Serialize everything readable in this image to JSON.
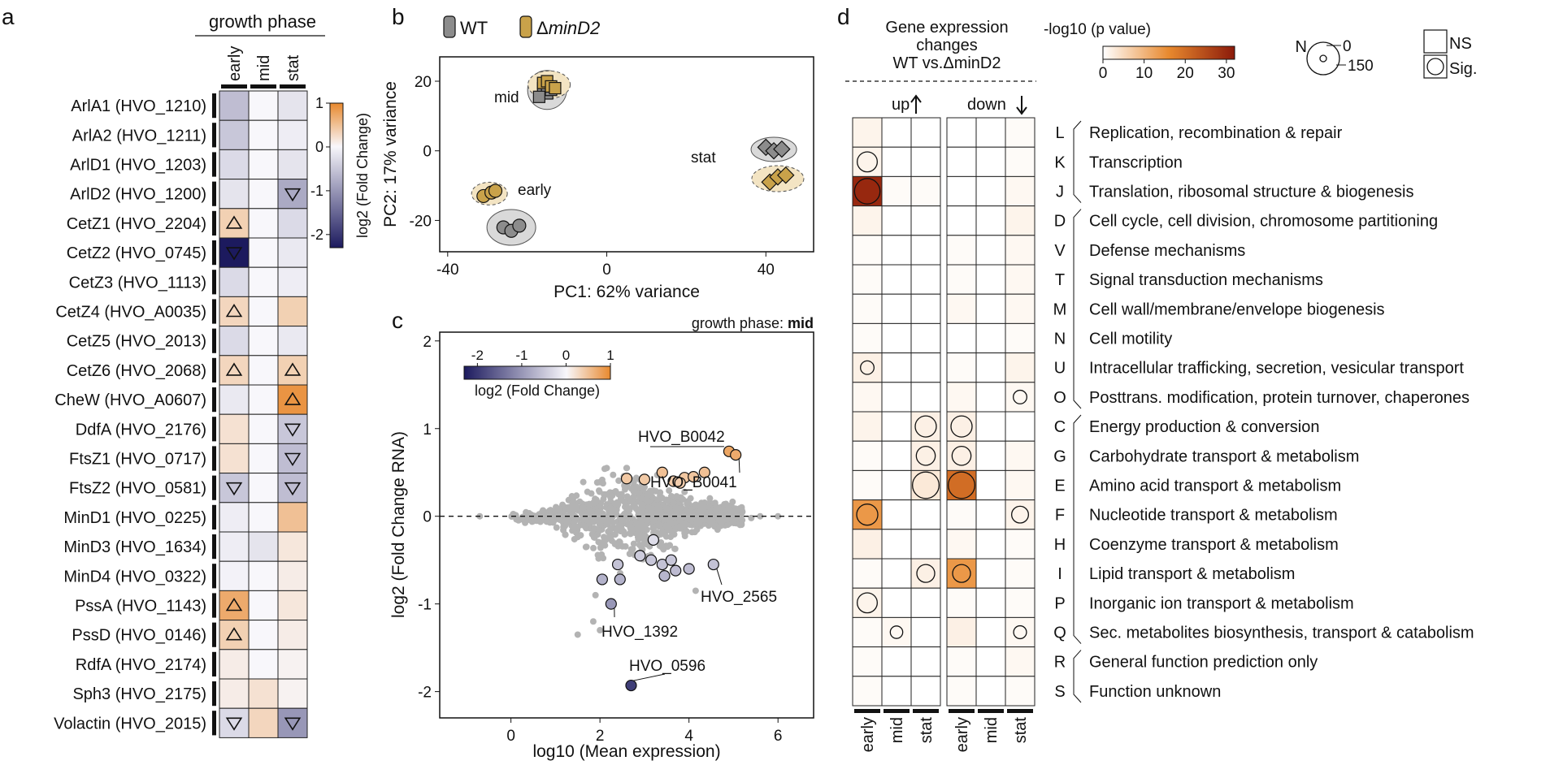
{
  "colors": {
    "negative": "#1c1a5e",
    "positive": "#e8892e",
    "neutral_point": "#b3b3b3",
    "wt": "#8c8c8c",
    "mutant": "#c9a24a",
    "pval_low": "#ffffff",
    "pval_high": "#8b1a0a",
    "cell_border": "#222222"
  },
  "panel_a": {
    "label": "a",
    "header": "growth phase",
    "phases": [
      "early",
      "mid",
      "stat"
    ],
    "colorbar": {
      "label": "log2 (Fold Change)",
      "ticks": [
        "1",
        "0",
        "-1",
        "-2"
      ],
      "range": [
        -2.3,
        1
      ]
    },
    "genes": [
      "ArlA1 (HVO_1210)",
      "ArlA2 (HVO_1211)",
      "ArlD1 (HVO_1203)",
      "ArlD2 (HVO_1200)",
      "CetZ1 (HVO_2204)",
      "CetZ2 (HVO_0745)",
      "CetZ3 (HVO_1113)",
      "CetZ4 (HVO_A0035)",
      "CetZ5 (HVO_2013)",
      "CetZ6 (HVO_2068)",
      "CheW (HVO_A0607)",
      "DdfA (HVO_2176)",
      "FtsZ1 (HVO_0717)",
      "FtsZ2 (HVO_0581)",
      "MinD1 (HVO_0225)",
      "MinD3 (HVO_1634)",
      "MinD4 (HVO_0322)",
      "PssA (HVO_1143)",
      "PssD (HVO_0146)",
      "RdfA (HVO_2174)",
      "Sph3 (HVO_2175)",
      "Volactin (HVO_2015)"
    ],
    "values": [
      [
        -0.6,
        0,
        -0.2
      ],
      [
        -0.5,
        0,
        -0.1
      ],
      [
        -0.3,
        0,
        -0.2
      ],
      [
        -0.2,
        0,
        -0.8
      ],
      [
        0.35,
        0,
        -0.3
      ],
      [
        -2.3,
        0,
        -0.15
      ],
      [
        -0.3,
        0,
        -0.1
      ],
      [
        0.3,
        0,
        0.35
      ],
      [
        -0.3,
        0,
        -0.15
      ],
      [
        0.3,
        0,
        0.35
      ],
      [
        -0.15,
        0,
        0.9
      ],
      [
        0.2,
        0,
        -0.5
      ],
      [
        0.2,
        0,
        -0.6
      ],
      [
        -0.5,
        0,
        -0.6
      ],
      [
        -0.1,
        0,
        0.5
      ],
      [
        -0.1,
        -0.2,
        0.15
      ],
      [
        -0.05,
        0,
        0.1
      ],
      [
        0.7,
        0,
        0.15
      ],
      [
        0.35,
        0,
        0.1
      ],
      [
        0.1,
        0,
        0.05
      ],
      [
        0.1,
        0.2,
        0.05
      ],
      [
        -0.3,
        0.3,
        -1.0
      ]
    ],
    "significance": [
      [
        "",
        "",
        ""
      ],
      [
        "",
        "",
        ""
      ],
      [
        "",
        "",
        ""
      ],
      [
        "",
        "",
        "down"
      ],
      [
        "up",
        "",
        ""
      ],
      [
        "down",
        "",
        ""
      ],
      [
        "",
        "",
        ""
      ],
      [
        "up",
        "",
        ""
      ],
      [
        "",
        "",
        ""
      ],
      [
        "up",
        "",
        "up"
      ],
      [
        "",
        "",
        "up"
      ],
      [
        "",
        "",
        "down"
      ],
      [
        "",
        "",
        "down"
      ],
      [
        "down",
        "",
        "down"
      ],
      [
        "",
        "",
        ""
      ],
      [
        "",
        "",
        ""
      ],
      [
        "",
        "",
        ""
      ],
      [
        "up",
        "",
        ""
      ],
      [
        "up",
        "",
        ""
      ],
      [
        "",
        "",
        ""
      ],
      [
        "",
        "",
        ""
      ],
      [
        "down",
        "",
        "down"
      ]
    ]
  },
  "panel_b": {
    "label": "b",
    "legend": {
      "wt": "WT",
      "mutant_prefix": "Δ",
      "mutant_italic": "minD2"
    },
    "chart_data": {
      "type": "scatter",
      "xlabel": "PC1: 62% variance",
      "ylabel": "PC2: 17% variance",
      "xlim": [
        -42,
        52
      ],
      "ylim": [
        -29,
        27
      ],
      "xticks": [
        -40,
        0,
        40
      ],
      "yticks": [
        20,
        0,
        -20
      ],
      "group_labels": [
        "mid",
        "early",
        "stat"
      ],
      "series": [
        {
          "name": "WT early",
          "shape": "circle",
          "group": "WT",
          "points": [
            [
              -26,
              -22
            ],
            [
              -24,
              -23
            ],
            [
              -22,
              -21.5
            ]
          ]
        },
        {
          "name": "mutant early",
          "shape": "circle",
          "group": "mutant",
          "points": [
            [
              -31,
              -13
            ],
            [
              -29,
              -12
            ],
            [
              -28,
              -11.5
            ]
          ]
        },
        {
          "name": "WT mid",
          "shape": "square",
          "group": "WT",
          "points": [
            [
              -16,
              18
            ],
            [
              -15,
              16.5
            ],
            [
              -14,
              17.5
            ],
            [
              -17,
              15.5
            ]
          ]
        },
        {
          "name": "mutant mid",
          "shape": "square",
          "group": "mutant",
          "points": [
            [
              -16,
              19.5
            ],
            [
              -15,
              20
            ],
            [
              -14,
              18.5
            ],
            [
              -13,
              18
            ]
          ]
        },
        {
          "name": "WT stat",
          "shape": "diamond",
          "group": "WT",
          "points": [
            [
              40,
              1
            ],
            [
              42,
              0
            ],
            [
              44,
              0.5
            ]
          ]
        },
        {
          "name": "mutant stat",
          "shape": "diamond",
          "group": "mutant",
          "points": [
            [
              41,
              -9
            ],
            [
              43,
              -7.5
            ],
            [
              45,
              -7
            ]
          ]
        }
      ]
    }
  },
  "panel_c": {
    "label": "c",
    "subtitle_prefix": "growth phase: ",
    "subtitle_bold": "mid",
    "colorbar": {
      "label": "log2 (Fold Change)",
      "ticks": [
        "-2",
        "-1",
        "0",
        "1"
      ]
    },
    "chart_data": {
      "type": "scatter",
      "xlabel": "log10 (Mean expression)",
      "ylabel": "log2 (Fold Change RNA)",
      "xlim": [
        -1.6,
        6.8
      ],
      "ylim": [
        -2.3,
        2.1
      ],
      "xticks": [
        0,
        2,
        4,
        6
      ],
      "yticks": [
        2,
        1,
        0,
        -1,
        -2
      ],
      "annotations": [
        "HVO_B0042",
        "HVO_B0041",
        "HVO_2565",
        "HVO_1392",
        "HVO_0596"
      ],
      "significant_points": [
        {
          "x": 4.9,
          "y": 0.74,
          "fc": 0.74,
          "label": "HVO_B0042"
        },
        {
          "x": 5.05,
          "y": 0.7,
          "fc": 0.7,
          "label": "HVO_B0041"
        },
        {
          "x": 4.55,
          "y": -0.55,
          "fc": -0.55,
          "label": "HVO_2565"
        },
        {
          "x": 2.25,
          "y": -1.0,
          "fc": -1.0,
          "label": "HVO_1392"
        },
        {
          "x": 2.7,
          "y": -1.93,
          "fc": -1.93,
          "label": "HVO_0596"
        },
        {
          "x": 2.6,
          "y": 0.43,
          "fc": 0.43,
          "label": ""
        },
        {
          "x": 3.0,
          "y": 0.42,
          "fc": 0.42,
          "label": ""
        },
        {
          "x": 3.4,
          "y": 0.5,
          "fc": 0.5,
          "label": ""
        },
        {
          "x": 3.65,
          "y": 0.4,
          "fc": 0.4,
          "label": ""
        },
        {
          "x": 3.9,
          "y": 0.44,
          "fc": 0.44,
          "label": ""
        },
        {
          "x": 4.1,
          "y": 0.45,
          "fc": 0.45,
          "label": ""
        },
        {
          "x": 4.35,
          "y": 0.5,
          "fc": 0.5,
          "label": ""
        },
        {
          "x": 3.8,
          "y": 0.38,
          "fc": 0.38,
          "label": ""
        },
        {
          "x": 3.2,
          "y": -0.27,
          "fc": -0.27,
          "label": ""
        },
        {
          "x": 2.9,
          "y": -0.45,
          "fc": -0.45,
          "label": ""
        },
        {
          "x": 3.15,
          "y": -0.5,
          "fc": -0.5,
          "label": ""
        },
        {
          "x": 3.4,
          "y": -0.55,
          "fc": -0.55,
          "label": ""
        },
        {
          "x": 3.6,
          "y": -0.5,
          "fc": -0.5,
          "label": ""
        },
        {
          "x": 3.7,
          "y": -0.62,
          "fc": -0.62,
          "label": ""
        },
        {
          "x": 2.4,
          "y": -0.55,
          "fc": -0.55,
          "label": ""
        },
        {
          "x": 2.05,
          "y": -0.72,
          "fc": -0.72,
          "label": ""
        },
        {
          "x": 2.45,
          "y": -0.72,
          "fc": -0.72,
          "label": ""
        },
        {
          "x": 3.45,
          "y": -0.68,
          "fc": -0.68,
          "label": ""
        },
        {
          "x": 4.0,
          "y": -0.6,
          "fc": -0.6,
          "label": ""
        }
      ]
    }
  },
  "panel_d": {
    "label": "d",
    "title_lines": [
      "Gene expression",
      "changes",
      "WT vs.ΔminD2"
    ],
    "dir_up": "up",
    "dir_down": "down",
    "phases": [
      "early",
      "mid",
      "stat"
    ],
    "pvalue_legend": {
      "title": "-log10 (p value)",
      "ticks": [
        "0",
        "10",
        "20",
        "30"
      ],
      "max": 32
    },
    "size_legend": {
      "n_label": "N",
      "ticks": [
        "0",
        "150"
      ]
    },
    "sig_legend": {
      "ns": "NS",
      "sig": "Sig."
    },
    "categories": [
      {
        "code": "L",
        "name": "Replication, recombination & repair"
      },
      {
        "code": "K",
        "name": "Transcription"
      },
      {
        "code": "J",
        "name": "Translation, ribosomal structure & biogenesis"
      },
      {
        "code": "D",
        "name": "Cell cycle, cell division, chromosome partitioning"
      },
      {
        "code": "V",
        "name": "Defense mechanisms"
      },
      {
        "code": "T",
        "name": "Signal transduction mechanisms"
      },
      {
        "code": "M",
        "name": "Cell wall/membrane/envelope biogenesis"
      },
      {
        "code": "N",
        "name": "Cell motility"
      },
      {
        "code": "U",
        "name": "Intracellular trafficking, secretion, vesicular transport"
      },
      {
        "code": "O",
        "name": "Posttrans. modification, protein turnover, chaperones"
      },
      {
        "code": "C",
        "name": "Energy production & conversion"
      },
      {
        "code": "G",
        "name": "Carbohydrate transport & metabolism"
      },
      {
        "code": "E",
        "name": "Amino acid transport & metabolism"
      },
      {
        "code": "F",
        "name": "Nucleotide transport & metabolism"
      },
      {
        "code": "H",
        "name": "Coenzyme transport & metabolism"
      },
      {
        "code": "I",
        "name": "Lipid transport & metabolism"
      },
      {
        "code": "P",
        "name": "Inorganic ion transport & metabolism"
      },
      {
        "code": "Q",
        "name": "Sec. metabolites biosynthesis, transport & catabolism"
      },
      {
        "code": "R",
        "name": "General function prediction only"
      },
      {
        "code": "S",
        "name": "Function unknown"
      }
    ],
    "group_brackets": [
      [
        0,
        2
      ],
      [
        3,
        9
      ],
      [
        10,
        17
      ],
      [
        18,
        19
      ]
    ],
    "pvalues_up": [
      [
        1.5,
        0,
        0
      ],
      [
        1.5,
        0,
        0
      ],
      [
        30,
        0.5,
        0.5
      ],
      [
        1.5,
        0,
        0
      ],
      [
        0.5,
        0,
        0
      ],
      [
        0.5,
        0,
        0
      ],
      [
        0.5,
        0,
        0
      ],
      [
        0.5,
        0,
        0
      ],
      [
        2,
        0,
        0
      ],
      [
        1,
        0,
        0
      ],
      [
        1.5,
        0,
        2
      ],
      [
        0.5,
        0,
        2
      ],
      [
        0.5,
        0,
        3
      ],
      [
        14,
        0,
        0
      ],
      [
        2,
        0,
        0
      ],
      [
        0.5,
        0,
        2
      ],
      [
        1.5,
        0,
        0
      ],
      [
        0.5,
        1,
        0
      ],
      [
        0.5,
        0,
        0
      ],
      [
        0.5,
        0,
        0
      ]
    ],
    "pvalues_down": [
      [
        0,
        0,
        0.5
      ],
      [
        0,
        0,
        0.5
      ],
      [
        0,
        0,
        1
      ],
      [
        0,
        0,
        1.5
      ],
      [
        0.5,
        0,
        1
      ],
      [
        0.5,
        0,
        1
      ],
      [
        1,
        0,
        1
      ],
      [
        0,
        0,
        0.5
      ],
      [
        0.5,
        0,
        1.5
      ],
      [
        1,
        0,
        1
      ],
      [
        2,
        0,
        0
      ],
      [
        2,
        0,
        1
      ],
      [
        20,
        0,
        1
      ],
      [
        0.5,
        0,
        1.5
      ],
      [
        1,
        0,
        0.5
      ],
      [
        14,
        0,
        0.5
      ],
      [
        0.5,
        0,
        0.5
      ],
      [
        2,
        0,
        1
      ],
      [
        0.5,
        0,
        1
      ],
      [
        0.5,
        0,
        0.5
      ]
    ],
    "circles_up": [
      [
        0,
        0,
        0
      ],
      [
        55,
        0,
        0
      ],
      [
        80,
        0,
        0
      ],
      [
        0,
        0,
        0
      ],
      [
        0,
        0,
        0
      ],
      [
        0,
        0,
        0
      ],
      [
        0,
        0,
        0
      ],
      [
        0,
        0,
        0
      ],
      [
        25,
        0,
        0
      ],
      [
        0,
        0,
        0
      ],
      [
        0,
        0,
        60
      ],
      [
        0,
        0,
        50
      ],
      [
        0,
        0,
        85
      ],
      [
        60,
        0,
        0
      ],
      [
        0,
        0,
        0
      ],
      [
        0,
        0,
        45
      ],
      [
        55,
        0,
        0
      ],
      [
        0,
        20,
        0
      ],
      [
        0,
        0,
        0
      ],
      [
        0,
        0,
        0
      ]
    ],
    "circles_down": [
      [
        0,
        0,
        0
      ],
      [
        0,
        0,
        0
      ],
      [
        0,
        0,
        0
      ],
      [
        0,
        0,
        0
      ],
      [
        0,
        0,
        0
      ],
      [
        0,
        0,
        0
      ],
      [
        0,
        0,
        0
      ],
      [
        0,
        0,
        0
      ],
      [
        0,
        0,
        0
      ],
      [
        0,
        0,
        25
      ],
      [
        60,
        0,
        0
      ],
      [
        50,
        0,
        0
      ],
      [
        85,
        0,
        0
      ],
      [
        0,
        0,
        40
      ],
      [
        0,
        0,
        0
      ],
      [
        45,
        0,
        0
      ],
      [
        0,
        0,
        0
      ],
      [
        0,
        0,
        22
      ],
      [
        0,
        0,
        0
      ],
      [
        0,
        0,
        0
      ]
    ]
  }
}
